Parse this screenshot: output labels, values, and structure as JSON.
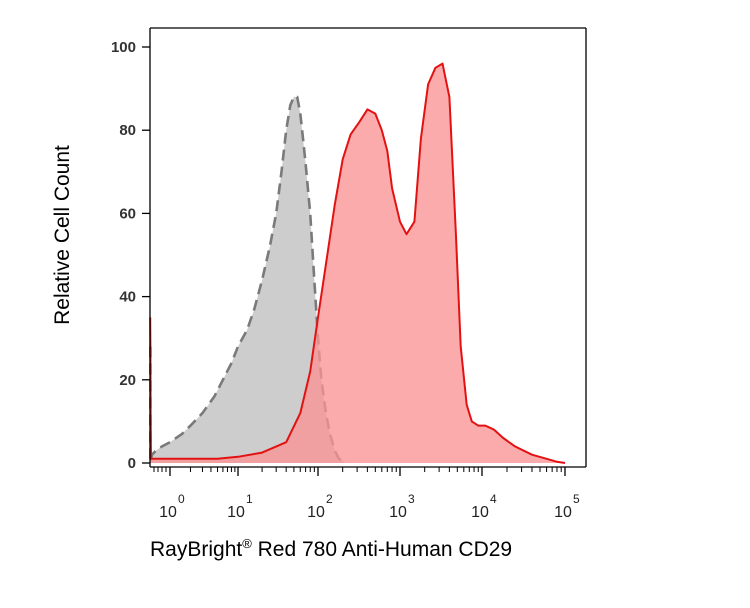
{
  "chart_data": {
    "type": "area",
    "title": "",
    "xlabel": "RayBright",
    "xlabel_mark": "®",
    "xlabel_rest": " Red 780 Anti-Human CD29",
    "ylabel": "Relative Cell Count",
    "xscale": "biexponential",
    "grid": false,
    "ylim": [
      0,
      100
    ],
    "y_ticks": [
      0,
      20,
      40,
      60,
      80,
      100
    ],
    "y_tick_labels": [
      "0",
      "20",
      "40",
      "60",
      "80",
      "100"
    ],
    "x_ticks": [
      {
        "value": 1,
        "base": "10",
        "exp": "0"
      },
      {
        "value": 10,
        "base": "10",
        "exp": "1"
      },
      {
        "value": 100,
        "base": "10",
        "exp": "2"
      },
      {
        "value": 1000,
        "base": "10",
        "exp": "3"
      },
      {
        "value": 10000,
        "base": "10",
        "exp": "4"
      },
      {
        "value": 100000,
        "base": "10",
        "exp": "5"
      }
    ],
    "series": [
      {
        "style": "dashed",
        "fill": "#c8c8c8",
        "stroke": "#7a7a7a",
        "x": [
          0.02,
          0.02,
          0.05,
          0.1,
          0.3,
          0.6,
          1,
          1.5,
          2,
          3,
          4.5,
          6,
          8,
          10,
          13,
          16,
          20,
          25,
          30,
          35,
          40,
          45,
          50,
          55,
          60,
          65,
          70,
          80,
          90,
          100,
          110,
          125,
          140,
          160,
          180,
          200,
          215
        ],
        "y": [
          28,
          0,
          1,
          2,
          3,
          4,
          5,
          7,
          9,
          12,
          16,
          20,
          24,
          28,
          32,
          37,
          44,
          52,
          60,
          70,
          80,
          86,
          88,
          88,
          84,
          78,
          72,
          60,
          44,
          30,
          20,
          12,
          7,
          3,
          1,
          0.5,
          0
        ]
      },
      {
        "style": "solid",
        "fill": "#fa9494",
        "stroke": "#e31212",
        "x": [
          0.01,
          0.02,
          0.03,
          0.05,
          5,
          10,
          20,
          40,
          60,
          80,
          100,
          130,
          160,
          200,
          250,
          320,
          400,
          500,
          600,
          700,
          800,
          1000,
          1200,
          1500,
          1800,
          2200,
          2700,
          3300,
          4000,
          4800,
          5500,
          6500,
          7500,
          9000,
          11000,
          14000,
          18000,
          25000,
          40000,
          60000,
          80000,
          100000
        ],
        "y": [
          35,
          28,
          12,
          1,
          1,
          1.5,
          2.5,
          5,
          12,
          22,
          35,
          50,
          62,
          73,
          79,
          82,
          85,
          84,
          80,
          75,
          66,
          58,
          55,
          58,
          78,
          91,
          95,
          96,
          88,
          55,
          28,
          14,
          10,
          9,
          9,
          8,
          6,
          4,
          2,
          1,
          0.3,
          0
        ]
      }
    ]
  }
}
